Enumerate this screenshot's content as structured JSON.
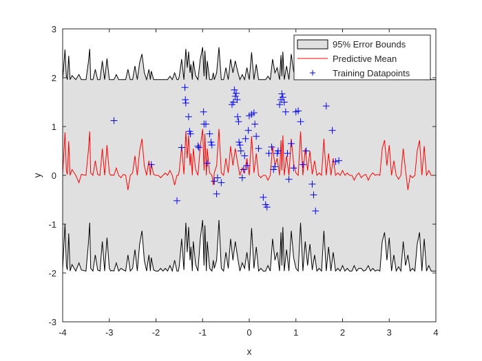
{
  "chart_data": {
    "type": "line",
    "title": "",
    "xlabel": "x",
    "ylabel": "y",
    "xlim": [
      -4,
      4
    ],
    "ylim": [
      -3,
      3
    ],
    "xticks": [
      -4,
      -3,
      -2,
      -1,
      0,
      1,
      2,
      3,
      4
    ],
    "yticks": [
      -3,
      -2,
      -1,
      0,
      1,
      2,
      3
    ],
    "grid": false,
    "legend_position": "top-right",
    "legend": [
      {
        "label": "95% Error Bounds",
        "kind": "patch",
        "color": "#e0e0e0"
      },
      {
        "label": "Predictive Mean",
        "kind": "line",
        "color": "#ff0000"
      },
      {
        "label": "Training Datapoints",
        "kind": "marker",
        "color": "#0000ff"
      }
    ],
    "series": [
      {
        "name": "Predictive Mean",
        "color": "#ff0000",
        "x": [
          -4.0,
          -3.95,
          -3.92,
          -3.9,
          -3.87,
          -3.84,
          -3.8,
          -3.72,
          -3.65,
          -3.6,
          -3.5,
          -3.45,
          -3.42,
          -3.4,
          -3.35,
          -3.3,
          -3.25,
          -3.2,
          -3.15,
          -3.1,
          -3.05,
          -3.0,
          -2.97,
          -2.95,
          -2.9,
          -2.85,
          -2.8,
          -2.75,
          -2.7,
          -2.65,
          -2.6,
          -2.55,
          -2.5,
          -2.45,
          -2.4,
          -2.35,
          -2.3,
          -2.25,
          -2.2,
          -2.15,
          -2.12,
          -2.1,
          -2.05,
          -2.0,
          -1.95,
          -1.9,
          -1.85,
          -1.8,
          -1.75,
          -1.7,
          -1.65,
          -1.6,
          -1.55,
          -1.52,
          -1.5,
          -1.45,
          -1.4,
          -1.36,
          -1.33,
          -1.3,
          -1.27,
          -1.25,
          -1.22,
          -1.2,
          -1.15,
          -1.1,
          -1.05,
          -1.0,
          -0.97,
          -0.95,
          -0.92,
          -0.9,
          -0.85,
          -0.8,
          -0.77,
          -0.75,
          -0.7,
          -0.65,
          -0.6,
          -0.55,
          -0.5,
          -0.45,
          -0.4,
          -0.35,
          -0.3,
          -0.25,
          -0.2,
          -0.15,
          -0.1,
          -0.05,
          0.0,
          0.05,
          0.1,
          0.15,
          0.2,
          0.25,
          0.3,
          0.35,
          0.4,
          0.45,
          0.5,
          0.55,
          0.6,
          0.65,
          0.68,
          0.7,
          0.72,
          0.75,
          0.8,
          0.85,
          0.9,
          0.95,
          1.0,
          1.05,
          1.1,
          1.15,
          1.2,
          1.25,
          1.3,
          1.35,
          1.4,
          1.45,
          1.5,
          1.55,
          1.6,
          1.65,
          1.7,
          1.75,
          1.8,
          1.85,
          1.9,
          1.95,
          2.0,
          2.05,
          2.1,
          2.15,
          2.2,
          2.25,
          2.3,
          2.35,
          2.4,
          2.45,
          2.5,
          2.55,
          2.6,
          2.65,
          2.7,
          2.75,
          2.8,
          2.85,
          2.9,
          2.95,
          3.0,
          3.05,
          3.1,
          3.15,
          3.2,
          3.25,
          3.3,
          3.35,
          3.4,
          3.45,
          3.5,
          3.55,
          3.6,
          3.65,
          3.7,
          3.75,
          3.8,
          3.85,
          3.9,
          3.95,
          4.0
        ],
        "values": [
          0.02,
          0.88,
          0.1,
          0.02,
          0.7,
          0.0,
          0.12,
          0.0,
          -0.15,
          0.02,
          0.0,
          0.5,
          0.9,
          0.05,
          0.0,
          0.3,
          0.02,
          0.0,
          0.55,
          0.0,
          0.62,
          0.05,
          0.0,
          0.01,
          0.0,
          0.15,
          0.0,
          -0.05,
          0.02,
          0.0,
          -0.3,
          0.0,
          0.05,
          0.4,
          0.0,
          0.5,
          0.75,
          0.2,
          0.0,
          0.3,
          0.0,
          0.25,
          0.02,
          0.0,
          0.0,
          -0.05,
          0.0,
          0.05,
          0.0,
          0.1,
          0.0,
          -0.2,
          0.0,
          0.0,
          0.1,
          0.6,
          0.02,
          0.9,
          0.35,
          0.82,
          0.2,
          0.45,
          0.0,
          0.55,
          0.12,
          0.0,
          0.6,
          0.95,
          0.1,
          0.85,
          0.0,
          0.55,
          0.05,
          0.0,
          -0.2,
          0.05,
          0.2,
          0.95,
          0.05,
          0.0,
          0.35,
          0.05,
          0.6,
          0.2,
          0.55,
          0.25,
          0.0,
          0.15,
          0.05,
          0.35,
          0.0,
          0.8,
          0.05,
          0.45,
          0.0,
          -0.05,
          0.0,
          0.0,
          -0.1,
          0.0,
          0.6,
          0.2,
          0.35,
          0.0,
          0.72,
          0.1,
          0.82,
          0.0,
          0.4,
          0.0,
          0.75,
          0.25,
          0.05,
          0.0,
          0.9,
          0.0,
          0.55,
          0.1,
          0.5,
          0.02,
          0.3,
          0.0,
          0.05,
          0.0,
          0.75,
          0.0,
          0.45,
          0.0,
          0.35,
          0.0,
          0.05,
          0.0,
          0.1,
          0.0,
          0.05,
          0.0,
          0.0,
          -0.1,
          0.0,
          0.05,
          -0.05,
          0.0,
          0.02,
          -0.1,
          0.0,
          0.05,
          0.0,
          0.02,
          0.0,
          0.55,
          0.72,
          0.2,
          0.62,
          0.0,
          0.3,
          0.0,
          -0.08,
          0.0,
          0.55,
          0.1,
          -0.3,
          0.0,
          -0.05,
          0.0,
          0.5,
          0.72,
          0.0,
          0.6,
          0.0,
          0.1,
          0.0,
          0.0,
          0.0
        ]
      },
      {
        "name": "Training Datapoints",
        "color": "#0000ff",
        "points": [
          [
            -2.9,
            1.12
          ],
          [
            -2.1,
            0.22
          ],
          [
            -1.55,
            -0.52
          ],
          [
            -1.45,
            0.57
          ],
          [
            -1.38,
            1.8
          ],
          [
            -1.37,
            1.55
          ],
          [
            -1.36,
            1.48
          ],
          [
            -1.3,
            1.2
          ],
          [
            -1.28,
            0.9
          ],
          [
            -1.26,
            0.85
          ],
          [
            -1.1,
            0.6
          ],
          [
            -1.08,
            0.57
          ],
          [
            -0.98,
            1.3
          ],
          [
            -0.97,
            1.05
          ],
          [
            -0.93,
            1.05
          ],
          [
            -0.9,
            0.25
          ],
          [
            -0.85,
            0.85
          ],
          [
            -0.82,
            0.68
          ],
          [
            -0.8,
            0.62
          ],
          [
            -0.75,
            -0.12
          ],
          [
            -0.7,
            -0.38
          ],
          [
            -0.68,
            -0.05
          ],
          [
            -0.6,
            -0.15
          ],
          [
            -0.37,
            1.45
          ],
          [
            -0.34,
            1.5
          ],
          [
            -0.32,
            1.75
          ],
          [
            -0.3,
            1.62
          ],
          [
            -0.28,
            1.68
          ],
          [
            -0.26,
            1.55
          ],
          [
            -0.25,
            1.2
          ],
          [
            -0.23,
            1.1
          ],
          [
            -0.22,
            0.68
          ],
          [
            -0.2,
            0.62
          ],
          [
            -0.18,
            0.5
          ],
          [
            -0.15,
            -0.05
          ],
          [
            -0.12,
            0.12
          ],
          [
            -0.1,
            0.4
          ],
          [
            -0.08,
            0.75
          ],
          [
            -0.05,
            0.2
          ],
          [
            -0.02,
            0.92
          ],
          [
            0.0,
            1.22
          ],
          [
            0.05,
            1.25
          ],
          [
            0.1,
            1.28
          ],
          [
            0.12,
            1.05
          ],
          [
            0.15,
            0.8
          ],
          [
            0.2,
            0.55
          ],
          [
            0.3,
            -0.45
          ],
          [
            0.35,
            -0.6
          ],
          [
            0.38,
            -0.65
          ],
          [
            0.42,
            0.45
          ],
          [
            0.48,
            0.58
          ],
          [
            0.52,
            0.12
          ],
          [
            0.55,
            0.18
          ],
          [
            0.6,
            0.45
          ],
          [
            0.62,
            0.5
          ],
          [
            0.65,
            1.45
          ],
          [
            0.68,
            1.55
          ],
          [
            0.7,
            1.67
          ],
          [
            0.72,
            1.6
          ],
          [
            0.75,
            1.5
          ],
          [
            0.78,
            1.3
          ],
          [
            0.82,
            0.45
          ],
          [
            0.85,
            -0.08
          ],
          [
            0.9,
            0.65
          ],
          [
            0.95,
            0.15
          ],
          [
            1.0,
            1.3
          ],
          [
            1.05,
            1.32
          ],
          [
            1.1,
            1.1
          ],
          [
            1.15,
            0.22
          ],
          [
            1.22,
            0.5
          ],
          [
            1.35,
            -0.18
          ],
          [
            1.38,
            -0.4
          ],
          [
            1.42,
            -0.73
          ],
          [
            1.65,
            1.42
          ],
          [
            1.78,
            0.92
          ],
          [
            1.85,
            0.28
          ],
          [
            1.92,
            0.3
          ]
        ]
      }
    ]
  }
}
